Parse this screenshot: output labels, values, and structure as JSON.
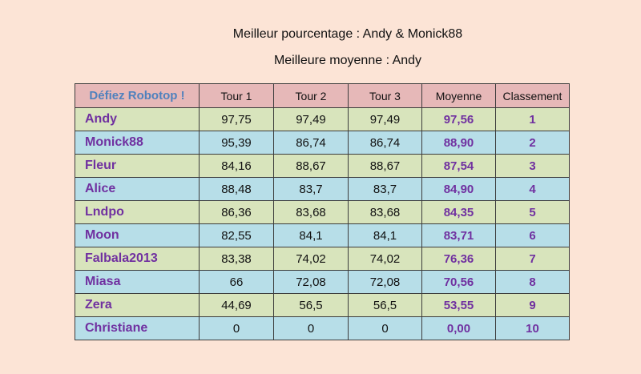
{
  "header": {
    "best_percentage": "Meilleur pourcentage : Andy & Monick88",
    "best_average": "Meilleure moyenne : Andy"
  },
  "table": {
    "columns": [
      "Défiez Robotop !",
      "Tour 1",
      "Tour 2",
      "Tour 3",
      "Moyenne",
      "Classement"
    ],
    "rows": [
      {
        "name": "Andy",
        "tour1": "97,75",
        "tour2": "97,49",
        "tour3": "97,49",
        "moyenne": "97,56",
        "classement": "1",
        "color": "#d8e4bc"
      },
      {
        "name": "Monick88",
        "tour1": "95,39",
        "tour2": "86,74",
        "tour3": "86,74",
        "moyenne": "88,90",
        "classement": "2",
        "color": "#b7dee8"
      },
      {
        "name": "Fleur",
        "tour1": "84,16",
        "tour2": "88,67",
        "tour3": "88,67",
        "moyenne": "87,54",
        "classement": "3",
        "color": "#d8e4bc"
      },
      {
        "name": "Alice",
        "tour1": "88,48",
        "tour2": "83,7",
        "tour3": "83,7",
        "moyenne": "84,90",
        "classement": "4",
        "color": "#b7dee8"
      },
      {
        "name": "Lndpo",
        "tour1": "86,36",
        "tour2": "83,68",
        "tour3": "83,68",
        "moyenne": "84,35",
        "classement": "5",
        "color": "#d8e4bc"
      },
      {
        "name": "Moon",
        "tour1": "82,55",
        "tour2": "84,1",
        "tour3": "84,1",
        "moyenne": "83,71",
        "classement": "6",
        "color": "#b7dee8"
      },
      {
        "name": "Falbala2013",
        "tour1": "83,38",
        "tour2": "74,02",
        "tour3": "74,02",
        "moyenne": "76,36",
        "classement": "7",
        "color": "#d8e4bc"
      },
      {
        "name": "Miasa",
        "tour1": "66",
        "tour2": "72,08",
        "tour3": "72,08",
        "moyenne": "70,56",
        "classement": "8",
        "color": "#b7dee8"
      },
      {
        "name": "Zera",
        "tour1": "44,69",
        "tour2": "56,5",
        "tour3": "56,5",
        "moyenne": "53,55",
        "classement": "9",
        "color": "#d8e4bc"
      },
      {
        "name": "Christiane",
        "tour1": "0",
        "tour2": "0",
        "tour3": "0",
        "moyenne": "0,00",
        "classement": "10",
        "color": "#b7dee8"
      }
    ]
  },
  "colors": {
    "background": "#fce4d6",
    "header_row": "#e6b8b8",
    "title_text": "#4f81bd",
    "accent_text": "#7030a0",
    "row_green": "#d8e4bc",
    "row_blue": "#b7dee8"
  }
}
